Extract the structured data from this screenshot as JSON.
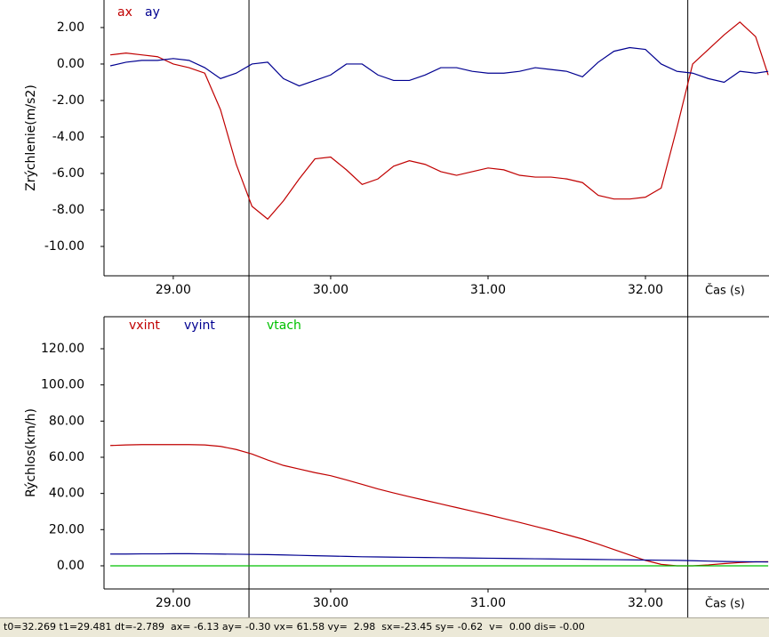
{
  "chart_data": [
    {
      "type": "line",
      "y_label": "Zrýchlenie(m/s2)",
      "x_label": "Čas (s)",
      "x": [
        28.6,
        28.7,
        28.8,
        28.9,
        29.0,
        29.1,
        29.2,
        29.3,
        29.4,
        29.5,
        29.6,
        29.7,
        29.8,
        29.9,
        30.0,
        30.1,
        30.2,
        30.3,
        30.4,
        30.5,
        30.6,
        30.7,
        30.8,
        30.9,
        31.0,
        31.1,
        31.2,
        31.3,
        31.4,
        31.5,
        31.6,
        31.7,
        31.8,
        31.9,
        32.0,
        32.1,
        32.2,
        32.3,
        32.4,
        32.5,
        32.6,
        32.7,
        32.78
      ],
      "series": [
        {
          "name": "ax",
          "color": "#c00000",
          "values": [
            0.5,
            0.6,
            0.5,
            0.4,
            0.0,
            -0.2,
            -0.5,
            -2.5,
            -5.5,
            -7.8,
            -8.5,
            -7.5,
            -6.3,
            -5.2,
            -5.1,
            -5.8,
            -6.6,
            -6.3,
            -5.6,
            -5.3,
            -5.5,
            -5.9,
            -6.1,
            -5.9,
            -5.7,
            -5.8,
            -6.1,
            -6.2,
            -6.2,
            -6.3,
            -6.5,
            -7.2,
            -7.4,
            -7.4,
            -7.3,
            -6.8,
            -3.5,
            0.0,
            0.8,
            1.6,
            2.3,
            1.5,
            -0.6
          ]
        },
        {
          "name": "ay",
          "color": "#000090",
          "values": [
            -0.1,
            0.1,
            0.2,
            0.2,
            0.3,
            0.2,
            -0.2,
            -0.8,
            -0.5,
            0.0,
            0.1,
            -0.8,
            -1.2,
            -0.9,
            -0.6,
            0.0,
            0.0,
            -0.6,
            -0.9,
            -0.9,
            -0.6,
            -0.2,
            -0.2,
            -0.4,
            -0.5,
            -0.5,
            -0.4,
            -0.2,
            -0.3,
            -0.4,
            -0.7,
            0.1,
            0.7,
            0.9,
            0.8,
            0.0,
            -0.4,
            -0.5,
            -0.8,
            -1.0,
            -0.4,
            -0.5,
            -0.4
          ]
        }
      ],
      "xlim": [
        28.56,
        32.785
      ],
      "xticks": [
        {
          "value": 29,
          "label": "29.00"
        },
        {
          "value": 30,
          "label": "30.00"
        },
        {
          "value": 31,
          "label": "31.00"
        },
        {
          "value": 32,
          "label": "32.00"
        }
      ],
      "ylim": [
        -11.61,
        3.51
      ],
      "yticks": [
        {
          "value": 2,
          "label": "2.00"
        },
        {
          "value": 0,
          "label": "0.00"
        },
        {
          "value": -2,
          "label": "-2.00"
        },
        {
          "value": -4,
          "label": "-4.00"
        },
        {
          "value": -6,
          "label": "-6.00"
        },
        {
          "value": -8,
          "label": "-8.00"
        },
        {
          "value": -10,
          "label": "-10.00"
        }
      ],
      "cursor_x": [
        29.481,
        32.269
      ]
    },
    {
      "type": "line",
      "y_label": "Rýchlos(km/h)",
      "x_label": "Čas (s)",
      "x": [
        28.6,
        28.7,
        28.8,
        28.9,
        29.0,
        29.1,
        29.2,
        29.3,
        29.4,
        29.5,
        29.6,
        29.7,
        29.8,
        29.9,
        30.0,
        30.1,
        30.2,
        30.3,
        30.4,
        30.5,
        30.6,
        30.7,
        30.8,
        30.9,
        31.0,
        31.1,
        31.2,
        31.3,
        31.4,
        31.5,
        31.6,
        31.7,
        31.8,
        31.9,
        32.0,
        32.1,
        32.2,
        32.3,
        32.4,
        32.5,
        32.6,
        32.7,
        32.78
      ],
      "series": [
        {
          "name": "vxint",
          "color": "#c00000",
          "values": [
            66.5,
            66.8,
            67,
            67,
            67,
            67,
            66.8,
            66,
            64.3,
            61.8,
            58.5,
            55.5,
            53.5,
            51.5,
            49.8,
            47.5,
            45,
            42.5,
            40.3,
            38.2,
            36.2,
            34.2,
            32.2,
            30.2,
            28.2,
            26.1,
            24,
            21.8,
            19.6,
            17.2,
            14.8,
            12,
            9,
            6,
            3,
            0.8,
            0,
            0,
            0.5,
            1.2,
            1.8,
            2.2,
            2.3
          ]
        },
        {
          "name": "vyint",
          "color": "#000090",
          "values": [
            6.5,
            6.5,
            6.6,
            6.6,
            6.7,
            6.7,
            6.6,
            6.5,
            6.4,
            6.3,
            6.2,
            6.0,
            5.8,
            5.6,
            5.4,
            5.2,
            5.0,
            4.9,
            4.8,
            4.7,
            4.6,
            4.5,
            4.4,
            4.3,
            4.2,
            4.1,
            4.0,
            3.9,
            3.8,
            3.7,
            3.6,
            3.5,
            3.4,
            3.3,
            3.2,
            3.1,
            3.0,
            2.8,
            2.6,
            2.4,
            2.3,
            2.2,
            2.1
          ]
        },
        {
          "name": "vtach",
          "color": "#00c000",
          "values": [
            0,
            0,
            0,
            0,
            0,
            0,
            0,
            0,
            0,
            0,
            0,
            0,
            0,
            0,
            0,
            0,
            0,
            0,
            0,
            0,
            0,
            0,
            0,
            0,
            0,
            0,
            0,
            0,
            0,
            0,
            0,
            0,
            0,
            0,
            0,
            0,
            0,
            0,
            0,
            0,
            0,
            0,
            0
          ]
        }
      ],
      "xlim": [
        28.56,
        32.785
      ],
      "xticks": [
        {
          "value": 29,
          "label": "29.00"
        },
        {
          "value": 30,
          "label": "30.00"
        },
        {
          "value": 31,
          "label": "31.00"
        },
        {
          "value": 32,
          "label": "32.00"
        }
      ],
      "ylim": [
        -12.8,
        137.7
      ],
      "yticks": [
        {
          "value": 120,
          "label": "120.00"
        },
        {
          "value": 100,
          "label": "100.00"
        },
        {
          "value": 80,
          "label": "80.00"
        },
        {
          "value": 60,
          "label": "60.00"
        },
        {
          "value": 40,
          "label": "40.00"
        },
        {
          "value": 20,
          "label": "20.00"
        },
        {
          "value": 0,
          "label": "0.00"
        }
      ],
      "cursor_x": [
        29.481,
        32.269
      ]
    }
  ],
  "status_bar": "t0=32.269 t1=29.481 dt=-2.789  ax= -6.13 ay= -0.30 vx= 61.58 vy=  2.98  sx=-23.45 sy= -0.62  v=  0.00 dis= -0.00"
}
